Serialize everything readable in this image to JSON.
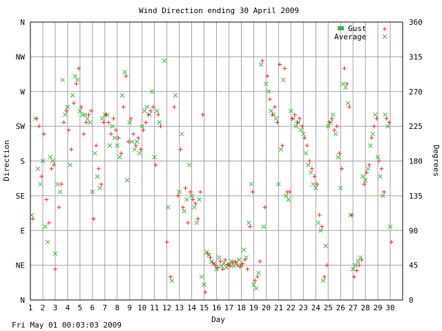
{
  "chart_data": {
    "type": "scatter",
    "title": "Wind Direction ending 30 April 2009",
    "xlabel": "Day",
    "ylabel_left": "Direction",
    "ylabel_right": "Degrees",
    "footer_timestamp": "Fri May 01 00:03:03 2009",
    "xlim": [
      1,
      31
    ],
    "ylim": [
      0,
      360
    ],
    "grid": true,
    "legend_position": "top-right",
    "x_ticks": [
      "1",
      "2",
      "3",
      "4",
      "5",
      "6",
      "7",
      "8",
      "9",
      "10",
      "11",
      "12",
      "13",
      "14",
      "15",
      "16",
      "17",
      "18",
      "19",
      "20",
      "21",
      "22",
      "23",
      "24",
      "25",
      "26",
      "27",
      "28",
      "29",
      "30"
    ],
    "y_ticks_left": [
      {
        "label": "N",
        "value": 0
      },
      {
        "label": "NE",
        "value": 45
      },
      {
        "label": "E",
        "value": 90
      },
      {
        "label": "SE",
        "value": 135
      },
      {
        "label": "S",
        "value": 180
      },
      {
        "label": "SW",
        "value": 225
      },
      {
        "label": "W",
        "value": 270
      },
      {
        "label": "NW",
        "value": 315
      },
      {
        "label": "N",
        "value": 360
      }
    ],
    "y_ticks_right": [
      {
        "label": "0",
        "value": 0
      },
      {
        "label": "45",
        "value": 45
      },
      {
        "label": "90",
        "value": 90
      },
      {
        "label": "135",
        "value": 135
      },
      {
        "label": "180",
        "value": 180
      },
      {
        "label": "225",
        "value": 225
      },
      {
        "label": "270",
        "value": 270
      },
      {
        "label": "315",
        "value": 315
      },
      {
        "label": "360",
        "value": 360
      }
    ],
    "colors": {
      "gust": "#e8222a",
      "average": "#3cb43c",
      "grid": "#a0a0a0",
      "axis": "#000000",
      "text": "#000000"
    },
    "series": [
      {
        "name": "Gust",
        "marker": "plus",
        "points": [
          [
            1.2,
            105
          ],
          [
            1.5,
            235
          ],
          [
            1.7,
            225
          ],
          [
            1.9,
            160
          ],
          [
            2.1,
            215
          ],
          [
            2.3,
            130
          ],
          [
            2.5,
            100
          ],
          [
            2.7,
            170
          ],
          [
            2.9,
            175
          ],
          [
            3.0,
            40
          ],
          [
            3.3,
            120
          ],
          [
            3.5,
            150
          ],
          [
            3.7,
            230
          ],
          [
            3.9,
            245
          ],
          [
            4.1,
            220
          ],
          [
            4.3,
            195
          ],
          [
            4.5,
            255
          ],
          [
            4.7,
            280
          ],
          [
            4.9,
            300
          ],
          [
            5.1,
            250
          ],
          [
            5.3,
            215
          ],
          [
            5.5,
            230
          ],
          [
            5.7,
            240
          ],
          [
            5.9,
            245
          ],
          [
            6.1,
            105
          ],
          [
            6.3,
            200
          ],
          [
            6.5,
            170
          ],
          [
            6.7,
            150
          ],
          [
            6.9,
            230
          ],
          [
            7.1,
            240
          ],
          [
            7.3,
            230
          ],
          [
            7.5,
            215
          ],
          [
            7.7,
            235
          ],
          [
            7.9,
            220
          ],
          [
            8.1,
            210
          ],
          [
            8.3,
            190
          ],
          [
            8.5,
            250
          ],
          [
            8.7,
            290
          ],
          [
            8.9,
            205
          ],
          [
            9.1,
            235
          ],
          [
            9.3,
            215
          ],
          [
            9.5,
            200
          ],
          [
            9.7,
            210
          ],
          [
            9.9,
            195
          ],
          [
            10.1,
            220
          ],
          [
            10.3,
            230
          ],
          [
            10.5,
            240
          ],
          [
            10.7,
            245
          ],
          [
            10.9,
            250
          ],
          [
            11.1,
            175
          ],
          [
            11.3,
            240
          ],
          [
            11.5,
            225
          ],
          [
            12.0,
            75
          ],
          [
            12.3,
            30
          ],
          [
            12.6,
            250
          ],
          [
            12.9,
            135
          ],
          [
            13.1,
            195
          ],
          [
            13.3,
            120
          ],
          [
            13.5,
            145
          ],
          [
            13.7,
            100
          ],
          [
            13.9,
            140
          ],
          [
            14.1,
            130
          ],
          [
            14.3,
            125
          ],
          [
            14.5,
            105
          ],
          [
            14.7,
            140
          ],
          [
            14.9,
            240
          ],
          [
            15.1,
            10
          ],
          [
            15.3,
            60
          ],
          [
            15.5,
            55
          ],
          [
            15.7,
            48
          ],
          [
            15.9,
            45
          ],
          [
            16.1,
            42
          ],
          [
            16.3,
            50
          ],
          [
            16.5,
            40
          ],
          [
            16.7,
            52
          ],
          [
            16.9,
            46
          ],
          [
            17.1,
            44
          ],
          [
            17.3,
            48
          ],
          [
            17.5,
            50
          ],
          [
            17.7,
            45
          ],
          [
            17.9,
            43
          ],
          [
            18.1,
            47
          ],
          [
            18.3,
            52
          ],
          [
            18.5,
            40
          ],
          [
            18.7,
            95
          ],
          [
            18.9,
            140
          ],
          [
            19.1,
            25
          ],
          [
            19.3,
            30
          ],
          [
            19.5,
            50
          ],
          [
            19.7,
            310
          ],
          [
            19.9,
            120
          ],
          [
            20.1,
            290
          ],
          [
            20.3,
            260
          ],
          [
            20.5,
            240
          ],
          [
            20.7,
            250
          ],
          [
            20.9,
            230
          ],
          [
            21.1,
            305
          ],
          [
            21.3,
            200
          ],
          [
            21.5,
            300
          ],
          [
            21.7,
            140
          ],
          [
            21.9,
            140
          ],
          [
            22.1,
            235
          ],
          [
            22.3,
            240
          ],
          [
            22.5,
            230
          ],
          [
            22.7,
            235
          ],
          [
            22.9,
            225
          ],
          [
            23.1,
            210
          ],
          [
            23.3,
            200
          ],
          [
            23.5,
            180
          ],
          [
            23.7,
            170
          ],
          [
            23.9,
            160
          ],
          [
            24.1,
            150
          ],
          [
            24.3,
            110
          ],
          [
            24.5,
            95
          ],
          [
            24.7,
            30
          ],
          [
            24.9,
            45
          ],
          [
            25.1,
            230
          ],
          [
            25.3,
            235
          ],
          [
            25.5,
            220
          ],
          [
            25.7,
            225
          ],
          [
            25.9,
            190
          ],
          [
            26.1,
            170
          ],
          [
            26.3,
            300
          ],
          [
            26.5,
            280
          ],
          [
            26.7,
            250
          ],
          [
            26.9,
            110
          ],
          [
            27.1,
            30
          ],
          [
            27.3,
            38
          ],
          [
            27.5,
            45
          ],
          [
            27.7,
            52
          ],
          [
            27.9,
            150
          ],
          [
            28.1,
            165
          ],
          [
            28.3,
            175
          ],
          [
            28.5,
            210
          ],
          [
            28.7,
            225
          ],
          [
            28.9,
            235
          ],
          [
            29.1,
            180
          ],
          [
            29.3,
            170
          ],
          [
            29.5,
            140
          ],
          [
            29.7,
            235
          ],
          [
            29.9,
            230
          ],
          [
            30.1,
            75
          ]
        ]
      },
      {
        "name": "Average",
        "marker": "cross",
        "points": [
          [
            1.1,
            110
          ],
          [
            1.4,
            235
          ],
          [
            1.6,
            170
          ],
          [
            1.8,
            150
          ],
          [
            2.0,
            180
          ],
          [
            2.2,
            95
          ],
          [
            2.4,
            75
          ],
          [
            2.6,
            185
          ],
          [
            2.8,
            180
          ],
          [
            3.0,
            60
          ],
          [
            3.2,
            150
          ],
          [
            3.4,
            140
          ],
          [
            3.6,
            285
          ],
          [
            3.8,
            240
          ],
          [
            4.0,
            250
          ],
          [
            4.2,
            175
          ],
          [
            4.4,
            265
          ],
          [
            4.6,
            290
          ],
          [
            4.8,
            285
          ],
          [
            5.0,
            245
          ],
          [
            5.2,
            240
          ],
          [
            5.4,
            240
          ],
          [
            5.6,
            235
          ],
          [
            5.8,
            230
          ],
          [
            6.0,
            140
          ],
          [
            6.2,
            190
          ],
          [
            6.4,
            160
          ],
          [
            6.6,
            145
          ],
          [
            6.8,
            235
          ],
          [
            7.0,
            240
          ],
          [
            7.2,
            240
          ],
          [
            7.4,
            200
          ],
          [
            7.6,
            225
          ],
          [
            7.8,
            210
          ],
          [
            8.0,
            200
          ],
          [
            8.2,
            185
          ],
          [
            8.4,
            265
          ],
          [
            8.6,
            295
          ],
          [
            8.8,
            155
          ],
          [
            9.0,
            230
          ],
          [
            9.2,
            205
          ],
          [
            9.4,
            195
          ],
          [
            9.6,
            205
          ],
          [
            9.8,
            190
          ],
          [
            10.0,
            225
          ],
          [
            10.2,
            245
          ],
          [
            10.4,
            250
          ],
          [
            10.6,
            240
          ],
          [
            10.8,
            270
          ],
          [
            11.0,
            185
          ],
          [
            11.2,
            245
          ],
          [
            11.4,
            230
          ],
          [
            11.8,
            310
          ],
          [
            12.1,
            120
          ],
          [
            12.4,
            25
          ],
          [
            12.7,
            265
          ],
          [
            13.0,
            140
          ],
          [
            13.2,
            215
          ],
          [
            13.4,
            115
          ],
          [
            13.6,
            130
          ],
          [
            13.8,
            175
          ],
          [
            14.0,
            135
          ],
          [
            14.2,
            120
          ],
          [
            14.4,
            100
          ],
          [
            14.6,
            130
          ],
          [
            14.8,
            30
          ],
          [
            15.0,
            20
          ],
          [
            15.2,
            62
          ],
          [
            15.4,
            58
          ],
          [
            15.6,
            50
          ],
          [
            15.8,
            47
          ],
          [
            16.0,
            40
          ],
          [
            16.2,
            55
          ],
          [
            16.4,
            44
          ],
          [
            16.6,
            48
          ],
          [
            16.8,
            42
          ],
          [
            17.0,
            46
          ],
          [
            17.2,
            50
          ],
          [
            17.4,
            44
          ],
          [
            17.6,
            48
          ],
          [
            17.8,
            52
          ],
          [
            18.0,
            45
          ],
          [
            18.2,
            65
          ],
          [
            18.4,
            55
          ],
          [
            18.6,
            100
          ],
          [
            18.8,
            150
          ],
          [
            19.0,
            20
          ],
          [
            19.2,
            15
          ],
          [
            19.4,
            35
          ],
          [
            19.6,
            305
          ],
          [
            19.8,
            95
          ],
          [
            20.0,
            280
          ],
          [
            20.2,
            270
          ],
          [
            20.4,
            245
          ],
          [
            20.6,
            240
          ],
          [
            20.8,
            235
          ],
          [
            21.0,
            150
          ],
          [
            21.2,
            195
          ],
          [
            21.4,
            285
          ],
          [
            21.6,
            135
          ],
          [
            21.8,
            130
          ],
          [
            22.0,
            245
          ],
          [
            22.2,
            235
          ],
          [
            22.4,
            225
          ],
          [
            22.6,
            230
          ],
          [
            22.8,
            220
          ],
          [
            23.0,
            215
          ],
          [
            23.2,
            190
          ],
          [
            23.4,
            175
          ],
          [
            23.6,
            165
          ],
          [
            23.8,
            150
          ],
          [
            24.0,
            145
          ],
          [
            24.2,
            100
          ],
          [
            24.4,
            90
          ],
          [
            24.6,
            25
          ],
          [
            24.8,
            70
          ],
          [
            25.0,
            225
          ],
          [
            25.2,
            230
          ],
          [
            25.4,
            240
          ],
          [
            25.6,
            215
          ],
          [
            25.8,
            185
          ],
          [
            26.0,
            145
          ],
          [
            26.2,
            280
          ],
          [
            26.4,
            275
          ],
          [
            26.6,
            255
          ],
          [
            26.8,
            110
          ],
          [
            27.0,
            40
          ],
          [
            27.2,
            45
          ],
          [
            27.4,
            50
          ],
          [
            27.6,
            55
          ],
          [
            27.8,
            160
          ],
          [
            28.0,
            155
          ],
          [
            28.2,
            170
          ],
          [
            28.4,
            200
          ],
          [
            28.6,
            215
          ],
          [
            28.8,
            240
          ],
          [
            29.0,
            185
          ],
          [
            29.2,
            160
          ],
          [
            29.4,
            135
          ],
          [
            29.6,
            240
          ],
          [
            29.8,
            225
          ],
          [
            30.0,
            95
          ]
        ]
      }
    ]
  }
}
